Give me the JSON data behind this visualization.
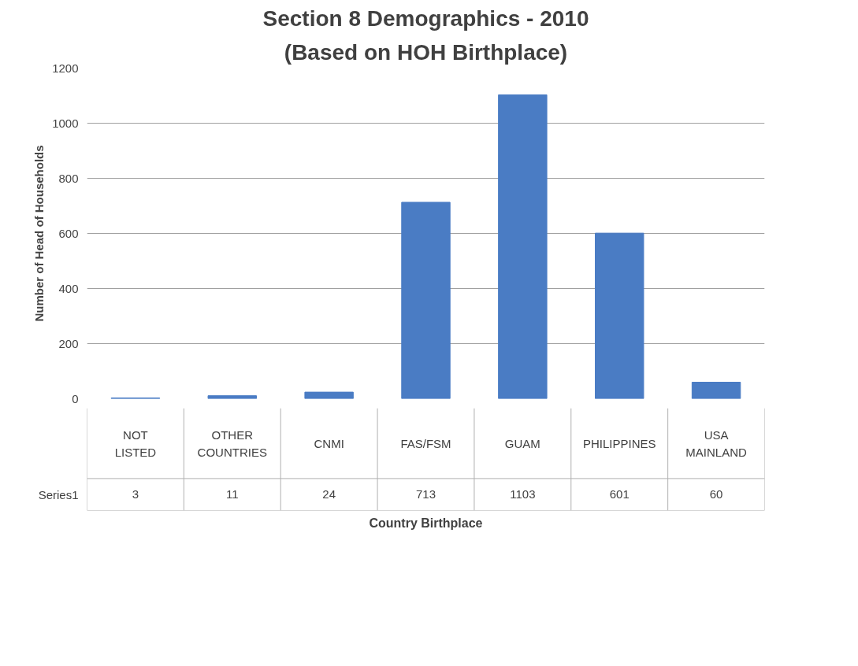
{
  "chart_data": {
    "type": "bar",
    "title": "Section 8 Demographics - 2010",
    "subtitle": "(Based on HOH Birthplace)",
    "xlabel": "Country Birthplace",
    "ylabel": "Number of Head of Households",
    "categories": [
      "NOT LISTED",
      "OTHER COUNTRIES",
      "CNMI",
      "FAS/FSM",
      "GUAM",
      "PHILIPPINES",
      "USA MAINLAND"
    ],
    "series": [
      {
        "name": "Series1",
        "color": "#4a7cc4",
        "values": [
          3,
          11,
          24,
          713,
          1103,
          601,
          60
        ]
      }
    ],
    "ylim": [
      0,
      1200
    ],
    "yticks": [
      0,
      200,
      400,
      600,
      800,
      1000,
      1200
    ],
    "grid": "y",
    "data_labels": true
  }
}
